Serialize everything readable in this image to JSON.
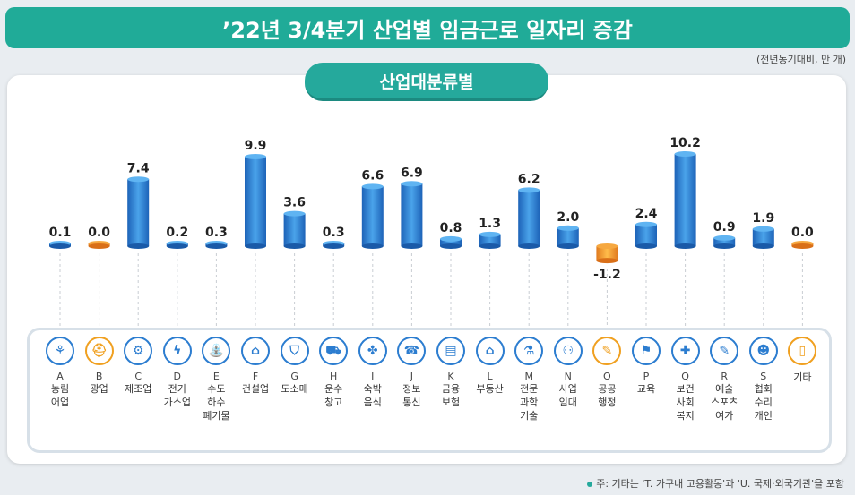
{
  "title": "’22년 3/4분기 산업별 임금근로 일자리 증감",
  "unit_note": "(전년동기대비, 만 개)",
  "subtitle": "산업대분류별",
  "footnote": "주: 기타는 'T. 가구내 고용활동'과 'U. 국제·외국기관'을 포함",
  "colors": {
    "positive": "#2f86d6",
    "neutral": "#ee8a3a",
    "accent": "#20ab98"
  },
  "chart_data": {
    "type": "bar",
    "title": "’22년 3/4분기 산업별 임금근로 일자리 증감",
    "subtitle": "산업대분류별",
    "unit": "만 개",
    "categories": [
      "A",
      "B",
      "C",
      "D",
      "E",
      "F",
      "G",
      "H",
      "I",
      "J",
      "K",
      "L",
      "M",
      "N",
      "O",
      "P",
      "Q",
      "R",
      "S",
      "기타"
    ],
    "category_labels": [
      "농림\n어업",
      "광업",
      "제조업",
      "전기\n가스업",
      "수도\n하수\n폐기물",
      "건설업",
      "도소매",
      "운수\n창고",
      "숙박\n음식",
      "정보\n통신",
      "금융\n보험",
      "부동산",
      "전문\n과학\n기술",
      "사업\n임대",
      "공공\n행정",
      "교육",
      "보건\n사회\n복지",
      "예술\n스포츠\n여가",
      "협회\n수리\n개인",
      "기타"
    ],
    "values": [
      0.1,
      0.0,
      7.4,
      0.2,
      0.3,
      9.9,
      3.6,
      0.3,
      6.6,
      6.9,
      0.8,
      1.3,
      6.2,
      2.0,
      -1.2,
      2.4,
      10.2,
      0.9,
      1.9,
      0.0
    ],
    "value_labels": [
      "0.1",
      "0.0",
      "7.4",
      "0.2",
      "0.3",
      "9.9",
      "3.6",
      "0.3",
      "6.6",
      "6.9",
      "0.8",
      "1.3",
      "6.2",
      "2.0",
      "-1.2",
      "2.4",
      "10.2",
      "0.9",
      "1.9",
      "0.0"
    ],
    "icons": [
      "wheat-icon",
      "helmet-icon",
      "gear-icon",
      "lightning-icon",
      "faucet-icon",
      "building-icon",
      "basket-icon",
      "truck-icon",
      "dining-icon",
      "phone-icon",
      "bank-icon",
      "house-icon",
      "microscope-icon",
      "handshake-icon",
      "scroll-icon",
      "graduation-cap-icon",
      "medical-bag-icon",
      "palette-icon",
      "people-icon",
      "door-icon"
    ],
    "icon_glyphs": [
      "⚘",
      "⛑",
      "⚙",
      "ϟ",
      "⛲",
      "⌂",
      "⛉",
      "⛟",
      "✤",
      "☎",
      "▤",
      "⌂",
      "⚗",
      "⚇",
      "✎",
      "⚑",
      "✚",
      "✎",
      "☻",
      "▯"
    ],
    "ylim": [
      -1.5,
      11
    ]
  }
}
